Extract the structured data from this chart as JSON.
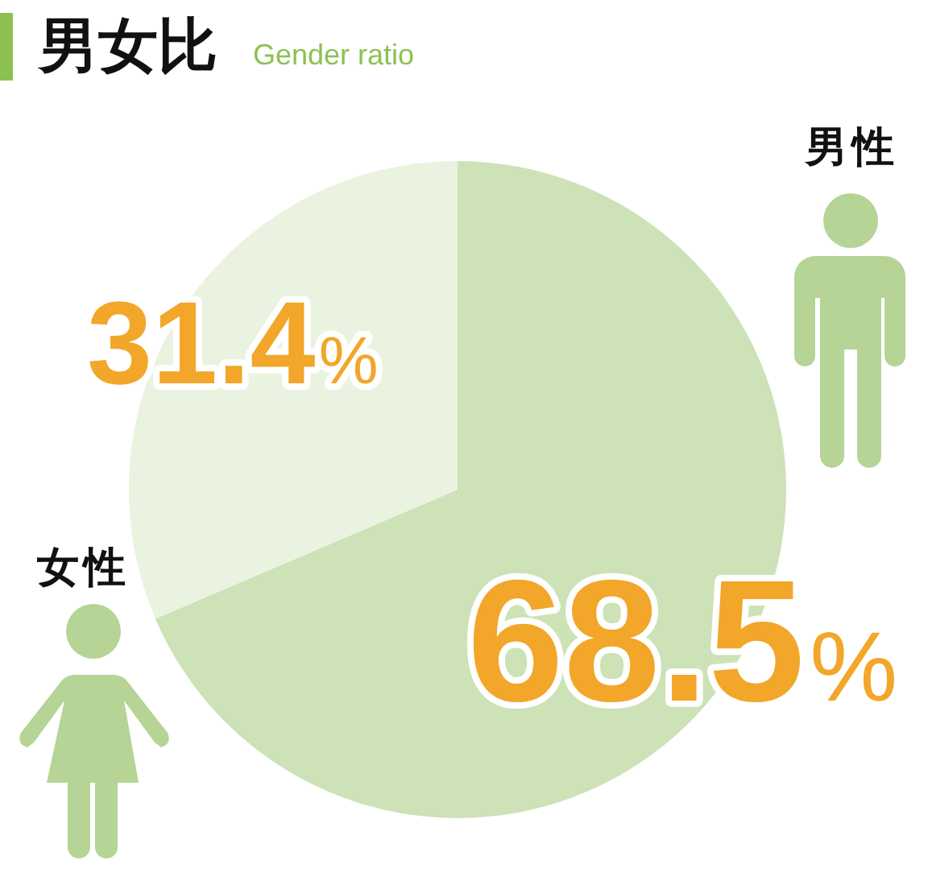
{
  "chart_data": {
    "type": "pie",
    "title": "男女比",
    "subtitle": "Gender ratio",
    "categories": [
      "男性",
      "女性"
    ],
    "values": [
      68.5,
      31.4
    ],
    "colors": [
      "#cde2b7",
      "#eaf3df"
    ],
    "value_labels": [
      "68.5%",
      "31.4%"
    ]
  }
}
